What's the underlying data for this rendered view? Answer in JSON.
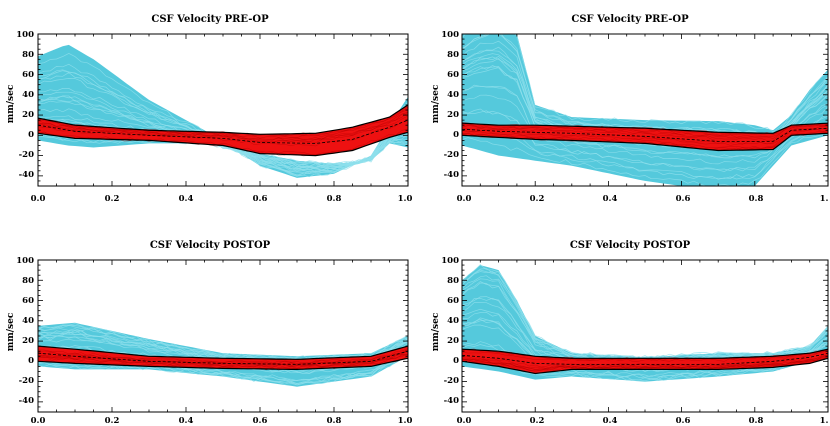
{
  "chart_data": [
    {
      "type": "line",
      "title": "CSF Velocity PRE-OP",
      "ylabel": "mm/sec",
      "xlabel": "",
      "xlim": [
        0,
        1
      ],
      "ylim": [
        -50,
        100
      ],
      "x_ticks": [
        "0.0",
        "0.2",
        "0.4",
        "0.6",
        "0.8",
        "1.0"
      ],
      "y_ticks": [
        "100",
        "80",
        "60",
        "40",
        "20",
        "0",
        "-20",
        "-40"
      ],
      "colors": {
        "cyan": "#55c9dc",
        "red": "#ee1111",
        "black": "#000000"
      },
      "series": [
        {
          "x": [
            0,
            0.08,
            0.15,
            0.3,
            0.45,
            0.6,
            0.7,
            0.8,
            0.9,
            0.95,
            1.0
          ],
          "y": [
            78,
            90,
            75,
            35,
            5,
            -30,
            -42,
            -38,
            -20,
            10,
            38
          ]
        },
        {
          "x": [
            0,
            0.08,
            0.15,
            0.3,
            0.45,
            0.6,
            0.7,
            0.8,
            0.9,
            0.95,
            1.0
          ],
          "y": [
            -5,
            -10,
            -12,
            -8,
            -8,
            -18,
            -25,
            -28,
            -25,
            -8,
            -12
          ]
        },
        {
          "x": [
            0,
            0.1,
            0.3,
            0.5,
            0.6,
            0.75,
            0.85,
            0.95,
            1.0
          ],
          "y": [
            17,
            10,
            5,
            3,
            1,
            2,
            8,
            18,
            30
          ]
        },
        {
          "x": [
            0,
            0.1,
            0.3,
            0.5,
            0.6,
            0.75,
            0.85,
            0.95,
            1.0
          ],
          "y": [
            2,
            -3,
            -5,
            -10,
            -18,
            -20,
            -15,
            -2,
            3
          ]
        },
        {
          "x": [
            0,
            0.1,
            0.3,
            0.5,
            0.6,
            0.75,
            0.85,
            0.95,
            1.0
          ],
          "y": [
            10,
            4,
            0,
            -3,
            -7,
            -8,
            -4,
            8,
            15
          ]
        }
      ]
    },
    {
      "type": "line",
      "title": "CSF Velocity PRE-OP",
      "ylabel": "mm/sec",
      "xlabel": "",
      "xlim": [
        0,
        1
      ],
      "ylim": [
        -50,
        100
      ],
      "x_ticks": [
        "0.0",
        "0.2",
        "0.4",
        "0.6",
        "0.8",
        "1."
      ],
      "y_ticks": [
        "100",
        "80",
        "60",
        "40",
        "20",
        "0",
        "-20",
        "-40"
      ],
      "colors": {
        "cyan": "#55c9dc",
        "red": "#ee1111",
        "black": "#000000"
      },
      "series": [
        {
          "x": [
            0,
            0.05,
            0.1,
            0.15,
            0.2,
            0.3,
            0.5,
            0.7,
            0.8,
            0.85,
            0.9,
            0.95,
            1.0
          ],
          "y": [
            100,
            115,
            120,
            100,
            30,
            18,
            15,
            14,
            10,
            5,
            20,
            45,
            65
          ]
        },
        {
          "x": [
            0,
            0.1,
            0.2,
            0.3,
            0.5,
            0.7,
            0.8,
            0.85,
            0.9,
            0.95,
            1.0
          ],
          "y": [
            -10,
            -20,
            -25,
            -30,
            -45,
            -55,
            -50,
            -30,
            -10,
            -5,
            0
          ]
        },
        {
          "x": [
            0,
            0.1,
            0.2,
            0.3,
            0.5,
            0.7,
            0.85,
            0.9,
            1.0
          ],
          "y": [
            12,
            10,
            10,
            9,
            7,
            3,
            2,
            10,
            12
          ]
        },
        {
          "x": [
            0,
            0.1,
            0.2,
            0.3,
            0.5,
            0.7,
            0.85,
            0.9,
            1.0
          ],
          "y": [
            0,
            -2,
            -4,
            -5,
            -8,
            -15,
            -14,
            0,
            2
          ]
        },
        {
          "x": [
            0,
            0.1,
            0.2,
            0.3,
            0.5,
            0.7,
            0.85,
            0.9,
            1.0
          ],
          "y": [
            6,
            4,
            3,
            2,
            -1,
            -6,
            -6,
            5,
            7
          ]
        }
      ]
    },
    {
      "type": "line",
      "title": "CSF Velocity POSTOP",
      "ylabel": "mm/sec",
      "xlabel": "",
      "xlim": [
        0,
        1
      ],
      "ylim": [
        -50,
        100
      ],
      "x_ticks": [
        "0.0",
        "0.2",
        "0.4",
        "0.6",
        "0.8",
        "1.0"
      ],
      "y_ticks": [
        "100",
        "80",
        "60",
        "40",
        "20",
        "0",
        "-20",
        "-40"
      ],
      "colors": {
        "cyan": "#55c9dc",
        "red": "#ee1111",
        "black": "#000000"
      },
      "series": [
        {
          "x": [
            0,
            0.1,
            0.3,
            0.5,
            0.7,
            0.9,
            1.0
          ],
          "y": [
            35,
            38,
            22,
            8,
            5,
            8,
            25
          ]
        },
        {
          "x": [
            0,
            0.1,
            0.3,
            0.5,
            0.7,
            0.9,
            1.0
          ],
          "y": [
            -5,
            -8,
            -8,
            -15,
            -25,
            -15,
            5
          ]
        },
        {
          "x": [
            0,
            0.1,
            0.3,
            0.5,
            0.7,
            0.9,
            1.0
          ],
          "y": [
            15,
            12,
            5,
            3,
            2,
            5,
            15
          ]
        },
        {
          "x": [
            0,
            0.1,
            0.3,
            0.5,
            0.7,
            0.9,
            1.0
          ],
          "y": [
            0,
            -2,
            -5,
            -7,
            -8,
            -5,
            3
          ]
        },
        {
          "x": [
            0,
            0.1,
            0.3,
            0.5,
            0.7,
            0.9,
            1.0
          ],
          "y": [
            8,
            5,
            0,
            -2,
            -3,
            0,
            10
          ]
        }
      ]
    },
    {
      "type": "line",
      "title": "CSF Velocity POSTOP",
      "ylabel": "mm/sec",
      "xlabel": "",
      "xlim": [
        0,
        1
      ],
      "ylim": [
        -50,
        100
      ],
      "x_ticks": [
        "0.0",
        "0.2",
        "0.4",
        "0.6",
        "0.8",
        "1."
      ],
      "y_ticks": [
        "100",
        "80",
        "60",
        "40",
        "20",
        "0",
        "-20",
        "-40"
      ],
      "colors": {
        "cyan": "#55c9dc",
        "red": "#ee1111",
        "black": "#000000"
      },
      "series": [
        {
          "x": [
            0,
            0.05,
            0.1,
            0.15,
            0.2,
            0.3,
            0.5,
            0.7,
            0.85,
            0.95,
            1.0
          ],
          "y": [
            80,
            95,
            90,
            60,
            25,
            8,
            4,
            8,
            8,
            15,
            35
          ]
        },
        {
          "x": [
            0,
            0.1,
            0.2,
            0.3,
            0.5,
            0.7,
            0.85,
            0.95,
            1.0
          ],
          "y": [
            -5,
            -10,
            -18,
            -15,
            -20,
            -15,
            -10,
            0,
            2
          ]
        },
        {
          "x": [
            0,
            0.1,
            0.2,
            0.3,
            0.5,
            0.7,
            0.85,
            0.95,
            1.0
          ],
          "y": [
            12,
            10,
            5,
            3,
            3,
            3,
            5,
            8,
            12
          ]
        },
        {
          "x": [
            0,
            0.1,
            0.2,
            0.3,
            0.5,
            0.7,
            0.85,
            0.95,
            1.0
          ],
          "y": [
            0,
            -5,
            -12,
            -8,
            -8,
            -8,
            -6,
            -2,
            3
          ]
        },
        {
          "x": [
            0,
            0.1,
            0.2,
            0.3,
            0.5,
            0.7,
            0.85,
            0.95,
            1.0
          ],
          "y": [
            6,
            3,
            -2,
            -3,
            -3,
            -3,
            0,
            4,
            8
          ]
        }
      ]
    }
  ]
}
